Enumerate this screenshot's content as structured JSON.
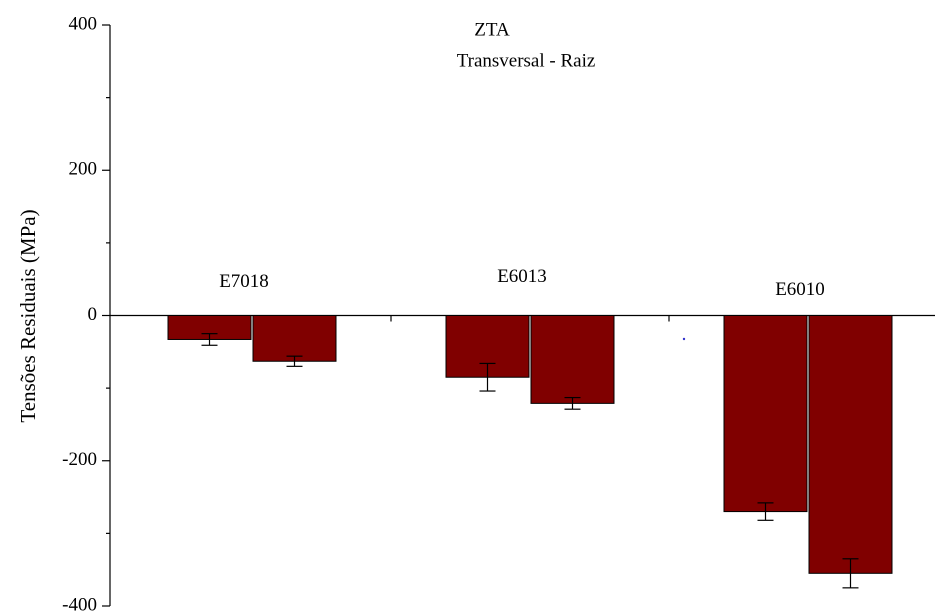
{
  "chart_data": {
    "type": "bar",
    "title": "ZTA",
    "subtitle": "Transversal - Raiz",
    "ylabel": "Tensões Residuais (MPa)",
    "categories": [
      "E7018",
      "E6013",
      "E6010"
    ],
    "series": [
      {
        "color": "#800000",
        "values": [
          -33,
          -85,
          -270
        ],
        "errors": [
          8,
          19,
          12
        ]
      },
      {
        "color": "#800000",
        "values": [
          -63,
          -121,
          -355
        ],
        "errors": [
          7,
          8,
          20
        ]
      }
    ],
    "ylim": [
      -400,
      400
    ],
    "yticks": [
      400,
      200,
      0,
      -200,
      -400
    ],
    "yminor_ticks": [
      300,
      100,
      -100,
      -300
    ]
  }
}
